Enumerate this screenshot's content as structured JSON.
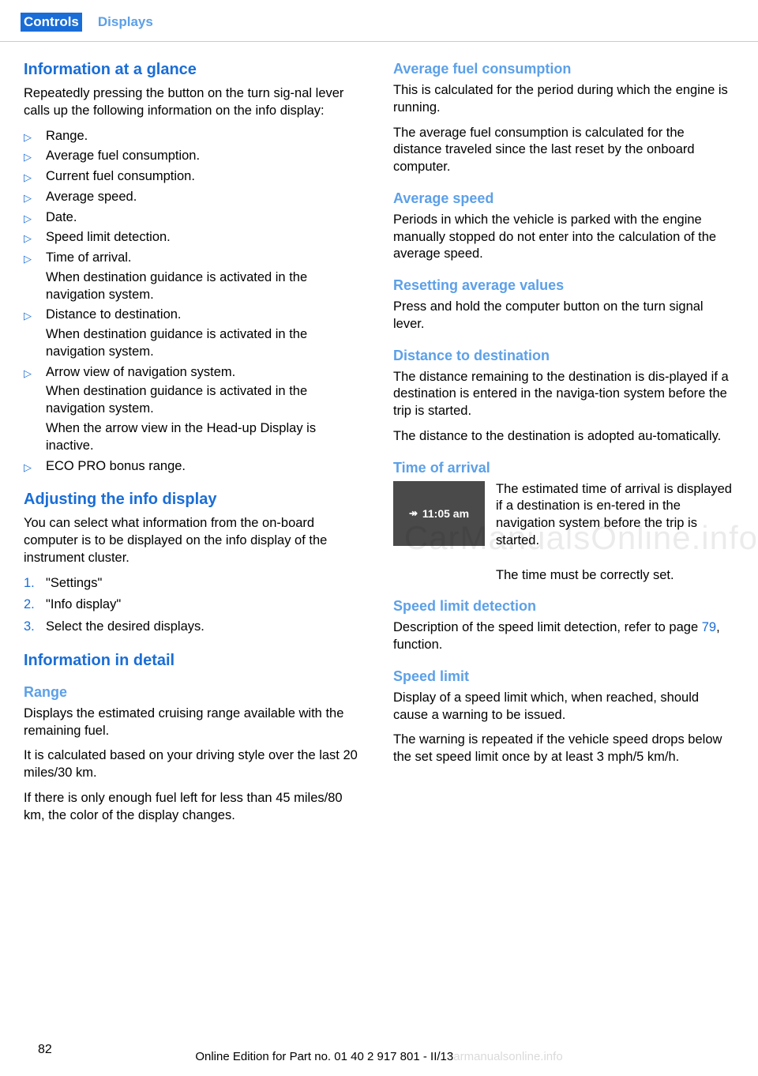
{
  "header": {
    "tab_active": "Controls",
    "tab_inactive": "Displays"
  },
  "left": {
    "h_info_glance": "Information at a glance",
    "p_glance": "Repeatedly pressing the button on the turn sig‐nal lever calls up the following information on the info display:",
    "bullets": [
      {
        "text": "Range."
      },
      {
        "text": "Average fuel consumption."
      },
      {
        "text": "Current fuel consumption."
      },
      {
        "text": "Average speed."
      },
      {
        "text": "Date."
      },
      {
        "text": "Speed limit detection."
      },
      {
        "text": "Time of arrival.",
        "sub": "When destination guidance is activated in the navigation system."
      },
      {
        "text": "Distance to destination.",
        "sub": "When destination guidance is activated in the navigation system."
      },
      {
        "text": "Arrow view of navigation system.",
        "sub": "When destination guidance is activated in the navigation system.",
        "sub2": "When the arrow view in the Head-up Display is inactive."
      },
      {
        "text": "ECO PRO bonus range."
      }
    ],
    "h_adjusting": "Adjusting the info display",
    "p_adjusting": "You can select what information from the on‐board computer is to be displayed on the info display of the instrument cluster.",
    "steps": [
      "\"Settings\"",
      "\"Info display\"",
      "Select the desired displays."
    ],
    "h_info_detail": "Information in detail",
    "h_range": "Range",
    "p_range1": "Displays the estimated cruising range available with the remaining fuel.",
    "p_range2": "It is calculated based on your driving style over the last 20 miles/30 km.",
    "p_range3": "If there is only enough fuel left for less than 45 miles/80 km, the color of the display changes."
  },
  "right": {
    "h_avg_fuel": "Average fuel consumption",
    "p_avg_fuel1": "This is calculated for the period during which the engine is running.",
    "p_avg_fuel2": "The average fuel consumption is calculated for the distance traveled since the last reset by the onboard computer.",
    "h_avg_speed": "Average speed",
    "p_avg_speed": "Periods in which the vehicle is parked with the engine manually stopped do not enter into the calculation of the average speed.",
    "h_reset": "Resetting average values",
    "p_reset": "Press and hold the computer button on the turn signal lever.",
    "h_dist": "Distance to destination",
    "p_dist1": "The distance remaining to the destination is dis‐played if a destination is entered in the naviga‐tion system before the trip is started.",
    "p_dist2": "The distance to the destination is adopted au‐tomatically.",
    "h_time": "Time of arrival",
    "time_display": "11:05 am",
    "p_time1": "The estimated time of arrival is displayed if a destination is en‐tered in the navigation system before the trip is started.",
    "p_time2": "The time must be correctly set.",
    "h_speed_detect": "Speed limit detection",
    "p_speed_detect_pre": "Description of the speed limit detection, refer to page ",
    "p_speed_detect_ref": "79",
    "p_speed_detect_post": ", function.",
    "h_speed_limit": "Speed limit",
    "p_speed_limit1": "Display of a speed limit which, when reached, should cause a warning to be issued.",
    "p_speed_limit2": "The warning is repeated if the vehicle speed drops below the set speed limit once by at least 3 mph/5 km/h."
  },
  "footer": {
    "page": "82",
    "text": "Online Edition for Part no. 01 40 2 917 801 - II/13",
    "suffix": "armanualsonline.info"
  },
  "watermark": "CarManualsOnline.info"
}
